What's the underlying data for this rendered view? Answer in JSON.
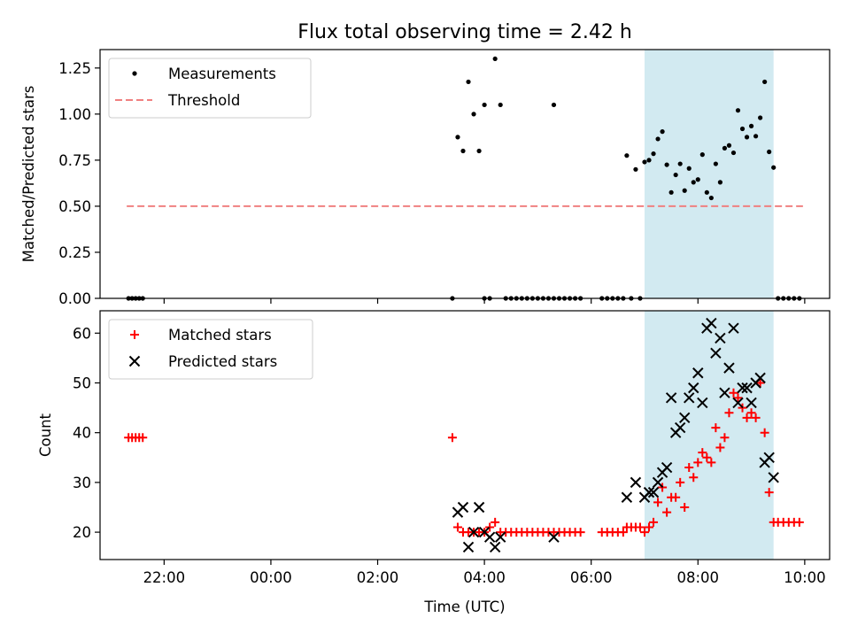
{
  "title": "Flux total observing time = 2.42 h",
  "colors": {
    "highlight": "#add8e6",
    "threshold": "#f08080",
    "matched": "#ff0000",
    "predicted": "#000000",
    "measurement": "#000000"
  },
  "chart_data": [
    {
      "type": "scatter",
      "ylabel": "Matched/Predicted stars",
      "xlim": [
        "20:48",
        "10:28"
      ],
      "ylim": [
        0,
        1.35
      ],
      "x_tick_labels": [
        "22:00",
        "00:00",
        "02:00",
        "04:00",
        "06:00",
        "08:00",
        "10:00"
      ],
      "y_tick_labels": [
        "0.00",
        "0.25",
        "0.50",
        "0.75",
        "1.00",
        "1.25"
      ],
      "legend_position": "top-left",
      "highlight_span": [
        "07:00",
        "09:25"
      ],
      "threshold": {
        "name": "Threshold",
        "value": 0.5,
        "x_range": [
          "21:18",
          "09:58"
        ]
      },
      "series": [
        {
          "name": "Measurements",
          "points": [
            [
              "21:20",
              0
            ],
            [
              "21:24",
              0
            ],
            [
              "21:28",
              0
            ],
            [
              "21:32",
              0
            ],
            [
              "21:36",
              0
            ],
            [
              "03:24",
              0
            ],
            [
              "03:30",
              0.875
            ],
            [
              "03:36",
              0.8
            ],
            [
              "03:42",
              1.175
            ],
            [
              "03:48",
              1.0
            ],
            [
              "03:54",
              0.8
            ],
            [
              "04:00",
              1.05
            ],
            [
              "04:00",
              0
            ],
            [
              "04:06",
              0
            ],
            [
              "04:12",
              1.3
            ],
            [
              "04:18",
              1.05
            ],
            [
              "04:24",
              0
            ],
            [
              "04:30",
              0
            ],
            [
              "04:36",
              0
            ],
            [
              "04:42",
              0
            ],
            [
              "04:48",
              0
            ],
            [
              "04:54",
              0
            ],
            [
              "05:00",
              0
            ],
            [
              "05:06",
              0
            ],
            [
              "05:12",
              0
            ],
            [
              "05:18",
              1.05
            ],
            [
              "05:18",
              0
            ],
            [
              "05:24",
              0
            ],
            [
              "05:30",
              0
            ],
            [
              "05:36",
              0
            ],
            [
              "05:42",
              0
            ],
            [
              "05:48",
              0
            ],
            [
              "06:12",
              0
            ],
            [
              "06:18",
              0
            ],
            [
              "06:24",
              0
            ],
            [
              "06:30",
              0
            ],
            [
              "06:36",
              0
            ],
            [
              "06:40",
              0.775
            ],
            [
              "06:45",
              0
            ],
            [
              "06:50",
              0.7
            ],
            [
              "06:55",
              0
            ],
            [
              "07:00",
              0.74
            ],
            [
              "07:05",
              0.75
            ],
            [
              "07:10",
              0.785
            ],
            [
              "07:15",
              0.865
            ],
            [
              "07:20",
              0.905
            ],
            [
              "07:25",
              0.725
            ],
            [
              "07:30",
              0.575
            ],
            [
              "07:35",
              0.67
            ],
            [
              "07:40",
              0.73
            ],
            [
              "07:45",
              0.585
            ],
            [
              "07:50",
              0.705
            ],
            [
              "07:55",
              0.63
            ],
            [
              "08:00",
              0.645
            ],
            [
              "08:05",
              0.78
            ],
            [
              "08:10",
              0.575
            ],
            [
              "08:15",
              0.545
            ],
            [
              "08:20",
              0.73
            ],
            [
              "08:25",
              0.63
            ],
            [
              "08:30",
              0.815
            ],
            [
              "08:35",
              0.83
            ],
            [
              "08:40",
              0.79
            ],
            [
              "08:45",
              1.02
            ],
            [
              "08:50",
              0.92
            ],
            [
              "08:55",
              0.875
            ],
            [
              "09:00",
              0.935
            ],
            [
              "09:05",
              0.88
            ],
            [
              "09:10",
              0.98
            ],
            [
              "09:15",
              1.175
            ],
            [
              "09:20",
              0.795
            ],
            [
              "09:25",
              0.71
            ],
            [
              "09:30",
              0
            ],
            [
              "09:36",
              0
            ],
            [
              "09:42",
              0
            ],
            [
              "09:48",
              0
            ],
            [
              "09:54",
              0
            ]
          ]
        }
      ]
    },
    {
      "type": "scatter",
      "xlabel": "Time (UTC)",
      "ylabel": "Count",
      "xlim": [
        "20:48",
        "10:28"
      ],
      "ylim": [
        14.5,
        64.5
      ],
      "x_tick_labels": [
        "22:00",
        "00:00",
        "02:00",
        "04:00",
        "06:00",
        "08:00",
        "10:00"
      ],
      "y_tick_labels": [
        "20",
        "30",
        "40",
        "50",
        "60"
      ],
      "legend_position": "top-left",
      "highlight_span": [
        "07:00",
        "09:25"
      ],
      "series": [
        {
          "name": "Matched stars",
          "marker": "plus",
          "points": [
            [
              "21:20",
              39
            ],
            [
              "21:24",
              39
            ],
            [
              "21:28",
              39
            ],
            [
              "21:32",
              39
            ],
            [
              "21:36",
              39
            ],
            [
              "03:24",
              39
            ],
            [
              "03:30",
              21
            ],
            [
              "03:36",
              20
            ],
            [
              "03:42",
              20
            ],
            [
              "03:48",
              20
            ],
            [
              "03:54",
              20
            ],
            [
              "04:00",
              20
            ],
            [
              "04:06",
              21
            ],
            [
              "04:12",
              22
            ],
            [
              "04:18",
              20
            ],
            [
              "04:24",
              20
            ],
            [
              "04:30",
              20
            ],
            [
              "04:36",
              20
            ],
            [
              "04:42",
              20
            ],
            [
              "04:48",
              20
            ],
            [
              "04:54",
              20
            ],
            [
              "05:00",
              20
            ],
            [
              "05:06",
              20
            ],
            [
              "05:12",
              20
            ],
            [
              "05:18",
              20
            ],
            [
              "05:24",
              20
            ],
            [
              "05:30",
              20
            ],
            [
              "05:36",
              20
            ],
            [
              "05:42",
              20
            ],
            [
              "05:48",
              20
            ],
            [
              "06:12",
              20
            ],
            [
              "06:18",
              20
            ],
            [
              "06:24",
              20
            ],
            [
              "06:30",
              20
            ],
            [
              "06:36",
              20
            ],
            [
              "06:40",
              21
            ],
            [
              "06:45",
              21
            ],
            [
              "06:50",
              21
            ],
            [
              "06:55",
              21
            ],
            [
              "07:00",
              20
            ],
            [
              "07:05",
              21
            ],
            [
              "07:10",
              22
            ],
            [
              "07:15",
              26
            ],
            [
              "07:20",
              29
            ],
            [
              "07:25",
              24
            ],
            [
              "07:30",
              27
            ],
            [
              "07:35",
              27
            ],
            [
              "07:40",
              30
            ],
            [
              "07:45",
              25
            ],
            [
              "07:50",
              33
            ],
            [
              "07:55",
              31
            ],
            [
              "08:00",
              34
            ],
            [
              "08:05",
              36
            ],
            [
              "08:10",
              35
            ],
            [
              "08:15",
              34
            ],
            [
              "08:20",
              41
            ],
            [
              "08:25",
              37
            ],
            [
              "08:30",
              39
            ],
            [
              "08:35",
              44
            ],
            [
              "08:40",
              48
            ],
            [
              "08:45",
              47
            ],
            [
              "08:50",
              45
            ],
            [
              "08:55",
              43
            ],
            [
              "09:00",
              44
            ],
            [
              "09:05",
              43
            ],
            [
              "09:10",
              50
            ],
            [
              "09:15",
              40
            ],
            [
              "09:20",
              28
            ],
            [
              "09:25",
              22
            ],
            [
              "09:30",
              22
            ],
            [
              "09:36",
              22
            ],
            [
              "09:42",
              22
            ],
            [
              "09:48",
              22
            ],
            [
              "09:54",
              22
            ]
          ]
        },
        {
          "name": "Predicted stars",
          "marker": "x",
          "points": [
            [
              "03:30",
              24
            ],
            [
              "03:36",
              25
            ],
            [
              "03:42",
              17
            ],
            [
              "03:48",
              20
            ],
            [
              "03:54",
              25
            ],
            [
              "04:00",
              20
            ],
            [
              "04:06",
              19
            ],
            [
              "04:12",
              17
            ],
            [
              "04:18",
              19
            ],
            [
              "05:18",
              19
            ],
            [
              "06:40",
              27
            ],
            [
              "06:50",
              30
            ],
            [
              "07:00",
              27
            ],
            [
              "07:05",
              28
            ],
            [
              "07:10",
              28
            ],
            [
              "07:15",
              30
            ],
            [
              "07:20",
              32
            ],
            [
              "07:25",
              33
            ],
            [
              "07:30",
              47
            ],
            [
              "07:35",
              40
            ],
            [
              "07:40",
              41
            ],
            [
              "07:45",
              43
            ],
            [
              "07:50",
              47
            ],
            [
              "07:55",
              49
            ],
            [
              "08:00",
              52
            ],
            [
              "08:05",
              46
            ],
            [
              "08:10",
              61
            ],
            [
              "08:15",
              62
            ],
            [
              "08:20",
              56
            ],
            [
              "08:25",
              59
            ],
            [
              "08:30",
              48
            ],
            [
              "08:35",
              53
            ],
            [
              "08:40",
              61
            ],
            [
              "08:45",
              46
            ],
            [
              "08:50",
              49
            ],
            [
              "08:55",
              49
            ],
            [
              "09:00",
              46
            ],
            [
              "09:05",
              50
            ],
            [
              "09:10",
              51
            ],
            [
              "09:15",
              34
            ],
            [
              "09:20",
              35
            ],
            [
              "09:25",
              31
            ]
          ]
        }
      ]
    }
  ]
}
